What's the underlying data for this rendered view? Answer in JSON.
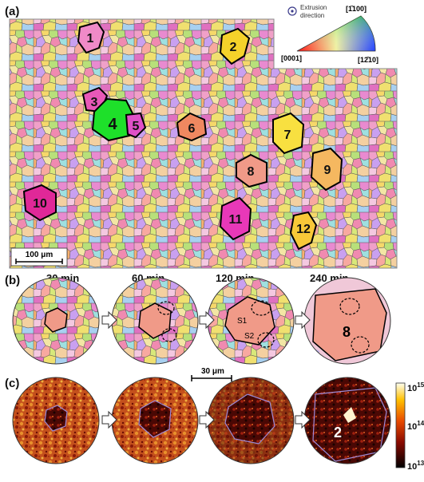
{
  "panels": {
    "a": {
      "label": "(a)"
    },
    "b": {
      "label": "(b)"
    },
    "c": {
      "label": "(c)"
    }
  },
  "legend": {
    "extrusion_line1": "Extrusion",
    "extrusion_line2": "direction",
    "corner_top": "[1̄100]",
    "corner_left": "[0001]",
    "corner_right": "[12̄10]"
  },
  "scale_bars": {
    "panel_a": "100 μm",
    "panel_bc": "30 μm"
  },
  "grains": [
    {
      "n": "1",
      "color": "#f08ac8"
    },
    {
      "n": "2",
      "color": "#f5d22a"
    },
    {
      "n": "3",
      "color": "#e858b8"
    },
    {
      "n": "4",
      "color": "#1ee02a"
    },
    {
      "n": "5",
      "color": "#e050c8"
    },
    {
      "n": "6",
      "color": "#f08860"
    },
    {
      "n": "7",
      "color": "#f8e040"
    },
    {
      "n": "8",
      "color": "#f09a88"
    },
    {
      "n": "9",
      "color": "#f5b860"
    },
    {
      "n": "10",
      "color": "#e02898"
    },
    {
      "n": "11",
      "color": "#e838b8"
    },
    {
      "n": "12",
      "color": "#f8c838"
    }
  ],
  "times": [
    "30 min",
    "60 min",
    "120 min",
    "240 min"
  ],
  "circle_labels": {
    "s1": "S1",
    "s2": "S2",
    "grain8": "8",
    "grain2": "2"
  },
  "colorbar": {
    "top_base": "10",
    "top_exp": "15",
    "mid_base": "10",
    "mid_exp": "14",
    "bot_base": "10",
    "bot_exp": "13"
  }
}
